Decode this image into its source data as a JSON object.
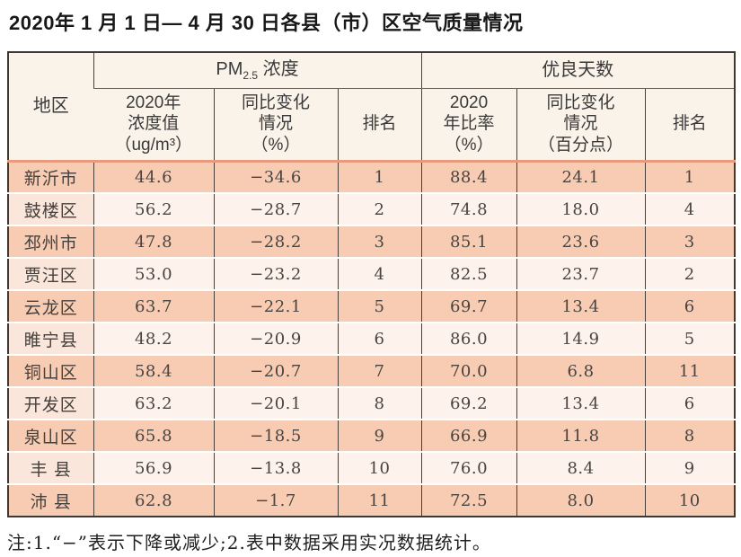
{
  "page": {
    "title": "2020年 1 月 1 日— 4 月 30 日各县（市）区空气质量情况",
    "footnote": "注:1.“−”表示下降或减少;2.表中数据采用实况数据统计。"
  },
  "colors": {
    "row_salmon": "#f8ccb3",
    "row_light": "#fdf2ec",
    "header_cream": "#faf3e9",
    "border_dark": "#474039",
    "header_divider_salmon": "#e99a7c"
  },
  "table": {
    "header": {
      "region_label": "地区",
      "pm_group": {
        "prefix": "PM",
        "sub": "2.5",
        "suffix": " 浓度"
      },
      "good_group_label": "优良天数",
      "sub_headers": {
        "pm_value": "2020年\n浓度值\n（ug/m³）",
        "pm_change": "同比变化\n情况\n（%）",
        "pm_rank": "排名",
        "good_rate": "2020\n年比率\n（%）",
        "good_change": "同比变化\n情况\n（百分点）",
        "good_rank": "排名"
      }
    },
    "rows": [
      {
        "region": "新沂市",
        "pm_value": "44.6",
        "pm_change": "−34.6",
        "pm_rank": "1",
        "good_rate": "88.4",
        "good_change": "24.1",
        "good_rank": "1"
      },
      {
        "region": "鼓楼区",
        "pm_value": "56.2",
        "pm_change": "−28.7",
        "pm_rank": "2",
        "good_rate": "74.8",
        "good_change": "18.0",
        "good_rank": "4"
      },
      {
        "region": "邳州市",
        "pm_value": "47.8",
        "pm_change": "−28.2",
        "pm_rank": "3",
        "good_rate": "85.1",
        "good_change": "23.6",
        "good_rank": "3"
      },
      {
        "region": "贾汪区",
        "pm_value": "53.0",
        "pm_change": "−23.2",
        "pm_rank": "4",
        "good_rate": "82.5",
        "good_change": "23.7",
        "good_rank": "2"
      },
      {
        "region": "云龙区",
        "pm_value": "63.7",
        "pm_change": "−22.1",
        "pm_rank": "5",
        "good_rate": "69.7",
        "good_change": "13.4",
        "good_rank": "6"
      },
      {
        "region": "睢宁县",
        "pm_value": "48.2",
        "pm_change": "−20.9",
        "pm_rank": "6",
        "good_rate": "86.0",
        "good_change": "14.9",
        "good_rank": "5"
      },
      {
        "region": "铜山区",
        "pm_value": "58.4",
        "pm_change": "−20.7",
        "pm_rank": "7",
        "good_rate": "70.0",
        "good_change": "6.8",
        "good_rank": "11"
      },
      {
        "region": "开发区",
        "pm_value": "63.2",
        "pm_change": "−20.1",
        "pm_rank": "8",
        "good_rate": "69.2",
        "good_change": "13.4",
        "good_rank": "6"
      },
      {
        "region": "泉山区",
        "pm_value": "65.8",
        "pm_change": "−18.5",
        "pm_rank": "9",
        "good_rate": "66.9",
        "good_change": "11.8",
        "good_rank": "8"
      },
      {
        "region": "丰 县",
        "pm_value": "56.9",
        "pm_change": "−13.8",
        "pm_rank": "10",
        "good_rate": "76.0",
        "good_change": "8.4",
        "good_rank": "9"
      },
      {
        "region": "沛 县",
        "pm_value": "62.8",
        "pm_change": "−1.7",
        "pm_rank": "11",
        "good_rate": "72.5",
        "good_change": "8.0",
        "good_rank": "10"
      }
    ]
  }
}
